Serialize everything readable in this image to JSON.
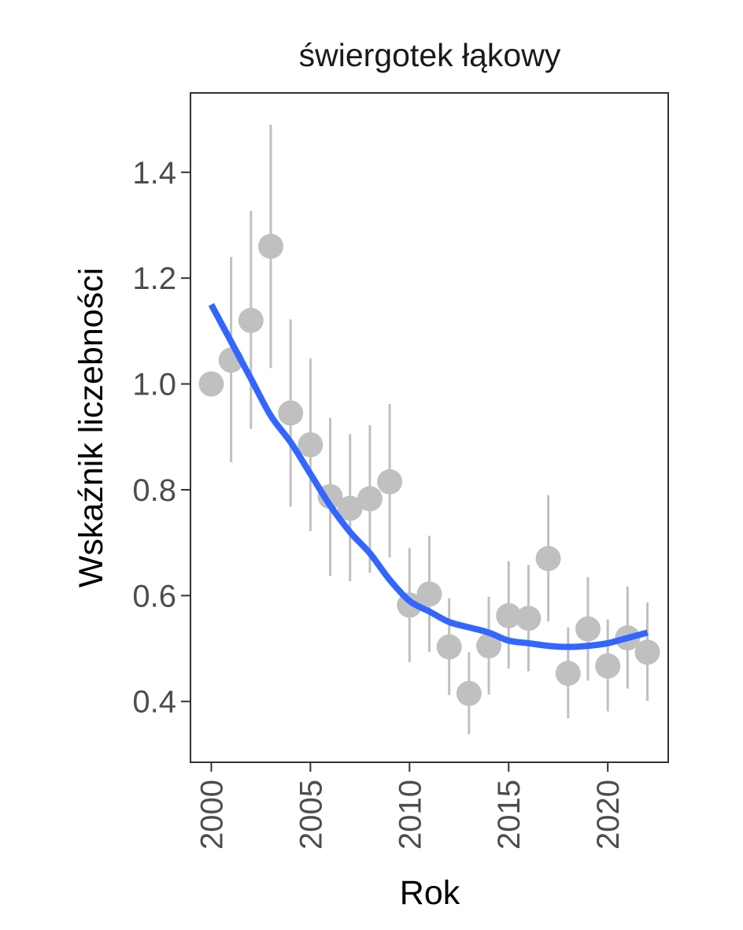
{
  "chart_data": {
    "type": "scatter",
    "title": "świergotek łąkowy",
    "xlabel": "Rok",
    "ylabel": "Wskaźnik liczebności",
    "xlim": [
      1998.95,
      2023.05
    ],
    "ylim": [
      0.285,
      1.55
    ],
    "xticks": [
      2000,
      2005,
      2010,
      2015,
      2020
    ],
    "xtick_labels": [
      "2000",
      "2005",
      "2010",
      "2015",
      "2020"
    ],
    "yticks": [
      0.4,
      0.6,
      0.8,
      1.0,
      1.2,
      1.4
    ],
    "ytick_labels": [
      "0.4",
      "0.6",
      "0.8",
      "1.0",
      "1.2",
      "1.4"
    ],
    "grid": false,
    "points": {
      "name": "",
      "color": "#c0c0c0",
      "x": [
        2000,
        2001,
        2002,
        2003,
        2004,
        2005,
        2006,
        2007,
        2008,
        2009,
        2010,
        2011,
        2012,
        2013,
        2014,
        2015,
        2016,
        2017,
        2018,
        2019,
        2020,
        2021,
        2022
      ],
      "y": [
        1.0,
        1.045,
        1.12,
        1.26,
        0.945,
        0.885,
        0.787,
        0.765,
        0.783,
        0.815,
        0.582,
        0.603,
        0.503,
        0.415,
        0.505,
        0.562,
        0.557,
        0.67,
        0.453,
        0.537,
        0.467,
        0.52,
        0.493
      ],
      "lower": [
        null,
        0.852,
        0.915,
        1.03,
        0.768,
        0.722,
        0.637,
        0.627,
        0.643,
        0.672,
        0.474,
        0.494,
        0.412,
        0.338,
        0.413,
        0.462,
        0.457,
        0.551,
        0.368,
        0.439,
        0.381,
        0.424,
        0.401
      ],
      "upper": [
        null,
        1.24,
        1.327,
        1.49,
        1.122,
        1.048,
        0.936,
        0.905,
        0.922,
        0.962,
        0.69,
        0.713,
        0.595,
        0.493,
        0.598,
        0.665,
        0.658,
        0.79,
        0.54,
        0.635,
        0.555,
        0.617,
        0.587
      ]
    },
    "trend": {
      "name": "",
      "color": "#3366ff",
      "x": [
        2000,
        2001,
        2002,
        2003,
        2004,
        2005,
        2006,
        2007,
        2008,
        2009,
        2010,
        2011,
        2012,
        2013,
        2014,
        2015,
        2016,
        2017,
        2018,
        2019,
        2020,
        2021,
        2022
      ],
      "y": [
        1.15,
        1.08,
        1.01,
        0.94,
        0.89,
        0.83,
        0.77,
        0.72,
        0.68,
        0.63,
        0.59,
        0.57,
        0.55,
        0.54,
        0.53,
        0.515,
        0.51,
        0.505,
        0.503,
        0.505,
        0.51,
        0.52,
        0.53
      ]
    }
  }
}
